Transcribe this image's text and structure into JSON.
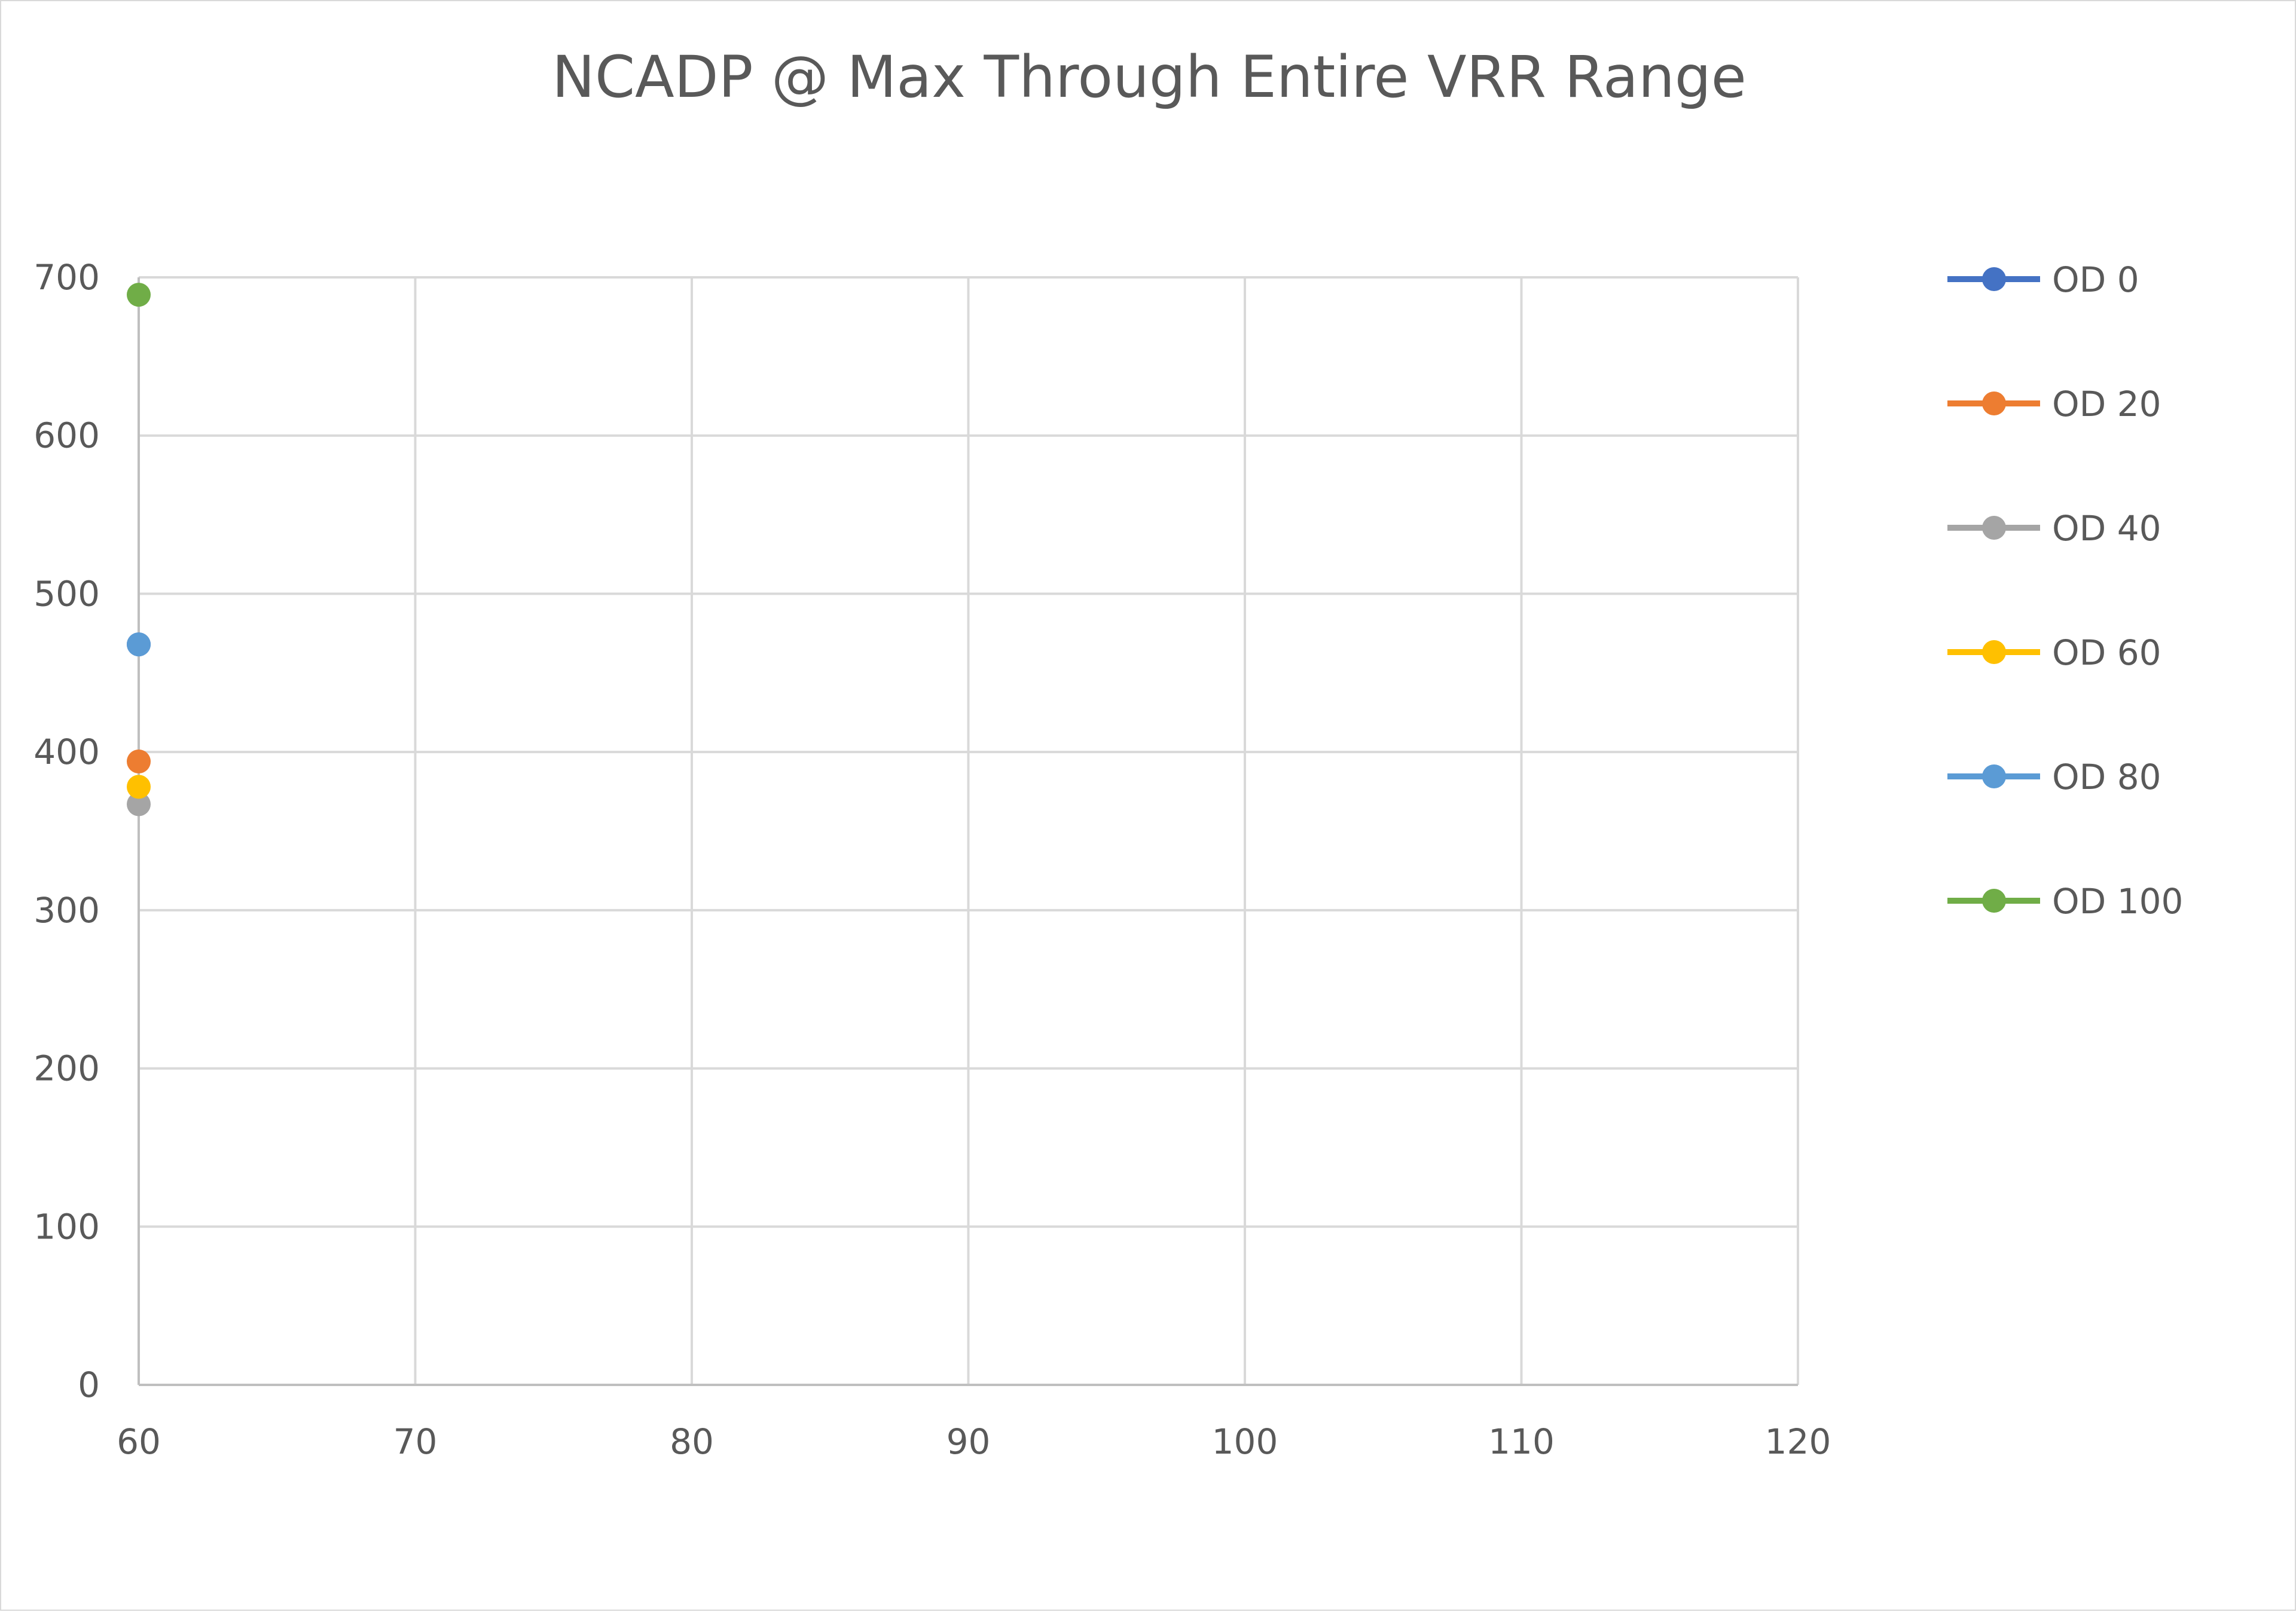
{
  "chart_data": {
    "type": "scatter",
    "title": "NCADP @ Max Through Entire VRR Range",
    "xlabel": "",
    "ylabel": "",
    "xlim": [
      60,
      120
    ],
    "ylim": [
      0,
      700
    ],
    "xticks": [
      60,
      70,
      80,
      90,
      100,
      110,
      120
    ],
    "yticks": [
      0,
      100,
      200,
      300,
      400,
      500,
      600,
      700
    ],
    "grid": true,
    "legend_position": "right",
    "series": [
      {
        "name": "OD 0",
        "color": "#4472c4",
        "points": [
          {
            "x": 60,
            "y": 468
          }
        ]
      },
      {
        "name": "OD 20",
        "color": "#ed7d31",
        "points": [
          {
            "x": 60,
            "y": 394
          }
        ]
      },
      {
        "name": "OD 40",
        "color": "#a5a5a5",
        "points": [
          {
            "x": 60,
            "y": 367
          }
        ]
      },
      {
        "name": "OD 60",
        "color": "#ffc000",
        "points": [
          {
            "x": 60,
            "y": 378
          }
        ]
      },
      {
        "name": "OD 80",
        "color": "#5b9bd5",
        "points": [
          {
            "x": 60,
            "y": 468
          }
        ]
      },
      {
        "name": "OD 100",
        "color": "#70ad47",
        "points": [
          {
            "x": 60,
            "y": 689
          }
        ]
      }
    ]
  }
}
